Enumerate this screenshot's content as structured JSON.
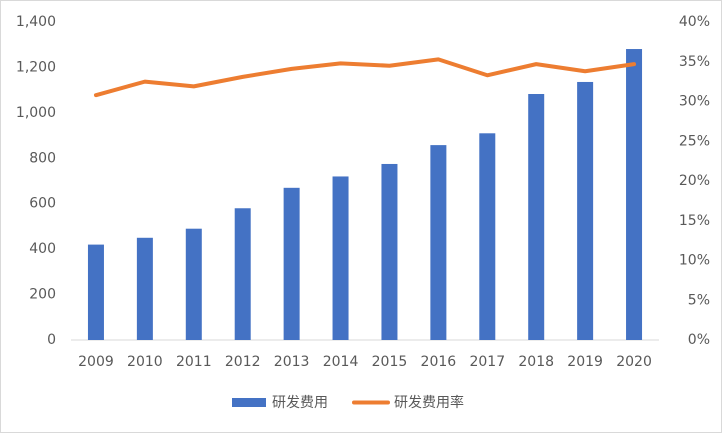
{
  "chart_data": {
    "type": "bar-line",
    "categories": [
      "2009",
      "2010",
      "2011",
      "2012",
      "2013",
      "2014",
      "2015",
      "2016",
      "2017",
      "2018",
      "2019",
      "2020"
    ],
    "series": [
      {
        "name": "研发费用",
        "type": "bar",
        "color": "#4472c4",
        "values": [
          420,
          450,
          490,
          580,
          670,
          720,
          775,
          858,
          910,
          1083,
          1136,
          1281
        ]
      },
      {
        "name": "研发费用率",
        "type": "line",
        "axis": "y2",
        "color": "#ed7d31",
        "values": [
          30.8,
          32.5,
          31.9,
          33.1,
          34.1,
          34.8,
          34.5,
          35.3,
          33.3,
          34.7,
          33.8,
          34.7
        ]
      }
    ],
    "ylim": [
      0,
      1400
    ],
    "yticks": [
      0,
      200,
      400,
      600,
      800,
      {
        "value": 1000,
        "label": "1,000"
      },
      {
        "value": 1200,
        "label": "1,200"
      },
      {
        "value": 1400,
        "label": "1,400"
      }
    ],
    "y2lim": [
      0,
      40
    ],
    "y2ticks": [
      {
        "value": 0,
        "label": "0%"
      },
      {
        "value": 5,
        "label": "5%"
      },
      {
        "value": 10,
        "label": "10%"
      },
      {
        "value": 15,
        "label": "15%"
      },
      {
        "value": 20,
        "label": "20%"
      },
      {
        "value": 25,
        "label": "25%"
      },
      {
        "value": 30,
        "label": "30%"
      },
      {
        "value": 35,
        "label": "35%"
      },
      {
        "value": 40,
        "label": "40%"
      }
    ],
    "legend": "bottom"
  }
}
